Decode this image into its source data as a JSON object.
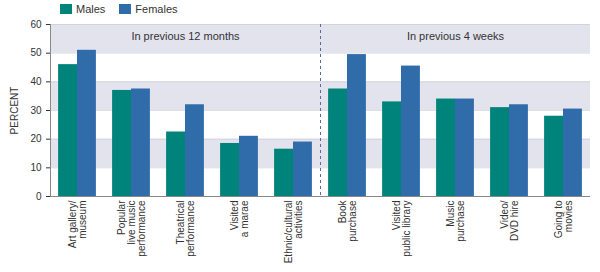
{
  "chart_data": {
    "type": "bar",
    "categories": [
      "Art gallery/\nmuseum",
      "Popular\nlive music\nperformance",
      "Theatrical\nperformance",
      "Visited\na marae",
      "Ethnic/cultural\nactivities",
      "Book\npurchase",
      "Visited\npublic library",
      "Music\npurchase",
      "Video/\nDVD hire",
      "Going to\nmovies"
    ],
    "series": [
      {
        "name": "Males",
        "color": "#00837a",
        "values": [
          46,
          37,
          22.5,
          18.5,
          16.5,
          37.5,
          33,
          34,
          31,
          28
        ]
      },
      {
        "name": "Females",
        "color": "#2f6ca9",
        "values": [
          51,
          37.5,
          32,
          21,
          19,
          49.5,
          45.5,
          34,
          32,
          30.5
        ]
      }
    ],
    "ylabel": "PERCENT",
    "ylim": [
      0,
      60
    ],
    "yticks": [
      0,
      10,
      20,
      30,
      40,
      50,
      60
    ],
    "grid": true,
    "legend": "top-left",
    "annotations": [
      "In previous 12 months",
      "In previous 4 weeks"
    ]
  }
}
